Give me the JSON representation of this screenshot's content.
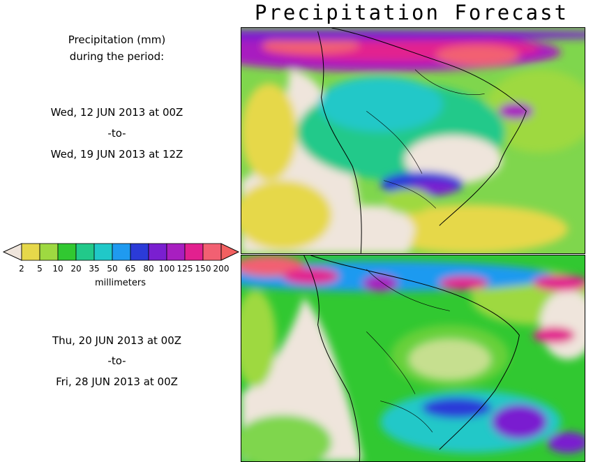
{
  "title": "Precipitation Forecast",
  "legend": {
    "heading_line1": "Precipitation (mm)",
    "heading_line2": "during the period:",
    "units": "millimeters",
    "ticks": [
      "2",
      "5",
      "10",
      "20",
      "35",
      "50",
      "65",
      "80",
      "100",
      "125",
      "150",
      "200"
    ],
    "colors": [
      "#e6d84a",
      "#9ed941",
      "#31c831",
      "#22c98a",
      "#20c8c8",
      "#1f9af0",
      "#2b3bd8",
      "#7a1fd0",
      "#a81fc0",
      "#e2208f",
      "#f26072"
    ],
    "low_color": "#efe5dc",
    "high_color": "#f26060"
  },
  "periods": [
    {
      "start": "Wed, 12 JUN 2013 at 00Z",
      "sep": "-to-",
      "end": "Wed, 19 JUN 2013 at 12Z"
    },
    {
      "start": "Thu, 20 JUN 2013 at 00Z",
      "sep": "-to-",
      "end": "Fri, 28 JUN 2013 at 00Z"
    }
  ]
}
